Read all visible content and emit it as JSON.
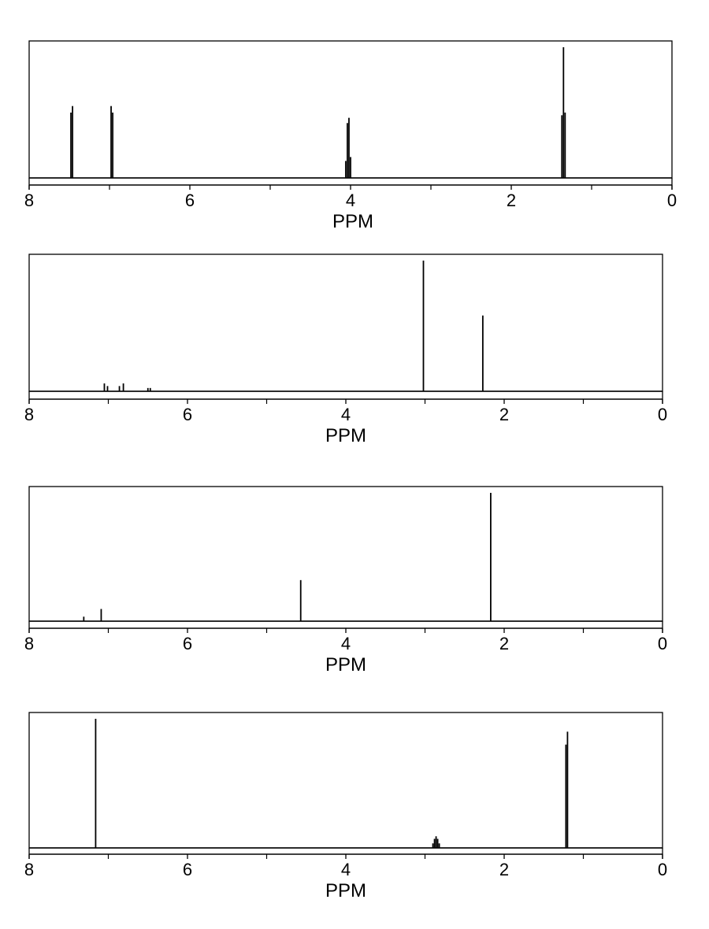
{
  "chart_data": [
    {
      "type": "line",
      "xlabel": "PPM",
      "xlim": [
        8,
        0
      ],
      "x_reversed": true,
      "tick_labels": [
        "8",
        "6",
        "4",
        "2",
        "0"
      ],
      "tick_values": [
        8,
        6,
        4,
        2,
        0
      ],
      "minor_ticks": [
        7,
        5,
        3,
        1
      ],
      "ylim": [
        0,
        1
      ],
      "peaks": [
        {
          "ppm": 7.48,
          "h": 0.5
        },
        {
          "ppm": 7.46,
          "h": 0.55
        },
        {
          "ppm": 6.98,
          "h": 0.55
        },
        {
          "ppm": 6.96,
          "h": 0.5
        },
        {
          "ppm": 4.06,
          "h": 0.13
        },
        {
          "ppm": 4.04,
          "h": 0.42
        },
        {
          "ppm": 4.02,
          "h": 0.46
        },
        {
          "ppm": 4.0,
          "h": 0.16
        },
        {
          "ppm": 1.37,
          "h": 0.48
        },
        {
          "ppm": 1.35,
          "h": 1.0
        },
        {
          "ppm": 1.33,
          "h": 0.5
        }
      ]
    },
    {
      "type": "line",
      "xlabel": "PPM",
      "xlim": [
        8,
        0
      ],
      "x_reversed": true,
      "tick_labels": [
        "8",
        "6",
        "4",
        "2",
        "0"
      ],
      "tick_values": [
        8,
        6,
        4,
        2,
        0
      ],
      "minor_ticks": [
        7,
        5,
        3,
        1
      ],
      "ylim": [
        0,
        1
      ],
      "peaks": [
        {
          "ppm": 7.05,
          "h": 0.06
        },
        {
          "ppm": 7.01,
          "h": 0.04
        },
        {
          "ppm": 6.86,
          "h": 0.04
        },
        {
          "ppm": 6.81,
          "h": 0.06
        },
        {
          "ppm": 6.5,
          "h": 0.025
        },
        {
          "ppm": 6.47,
          "h": 0.025
        },
        {
          "ppm": 3.02,
          "h": 1.0
        },
        {
          "ppm": 2.27,
          "h": 0.58
        }
      ]
    },
    {
      "type": "line",
      "xlabel": "PPM",
      "xlim": [
        8,
        0
      ],
      "x_reversed": true,
      "tick_labels": [
        "8",
        "6",
        "4",
        "2",
        "0"
      ],
      "tick_values": [
        8,
        6,
        4,
        2,
        0
      ],
      "minor_ticks": [
        7,
        5,
        3,
        1
      ],
      "ylim": [
        0,
        1
      ],
      "peaks": [
        {
          "ppm": 7.31,
          "h": 0.035
        },
        {
          "ppm": 7.09,
          "h": 0.095
        },
        {
          "ppm": 4.57,
          "h": 0.32
        },
        {
          "ppm": 2.17,
          "h": 1.0
        }
      ]
    },
    {
      "type": "line",
      "xlabel": "PPM",
      "xlim": [
        8,
        0
      ],
      "x_reversed": true,
      "tick_labels": [
        "8",
        "6",
        "4",
        "2",
        "0"
      ],
      "tick_values": [
        8,
        6,
        4,
        2,
        0
      ],
      "minor_ticks": [
        7,
        5,
        3,
        1
      ],
      "ylim": [
        0,
        1
      ],
      "peaks": [
        {
          "ppm": 7.16,
          "h": 1.0
        },
        {
          "ppm": 2.9,
          "h": 0.035
        },
        {
          "ppm": 2.88,
          "h": 0.07
        },
        {
          "ppm": 2.86,
          "h": 0.09
        },
        {
          "ppm": 2.84,
          "h": 0.07
        },
        {
          "ppm": 2.82,
          "h": 0.035
        },
        {
          "ppm": 1.22,
          "h": 0.8
        },
        {
          "ppm": 1.2,
          "h": 0.9
        }
      ]
    }
  ]
}
